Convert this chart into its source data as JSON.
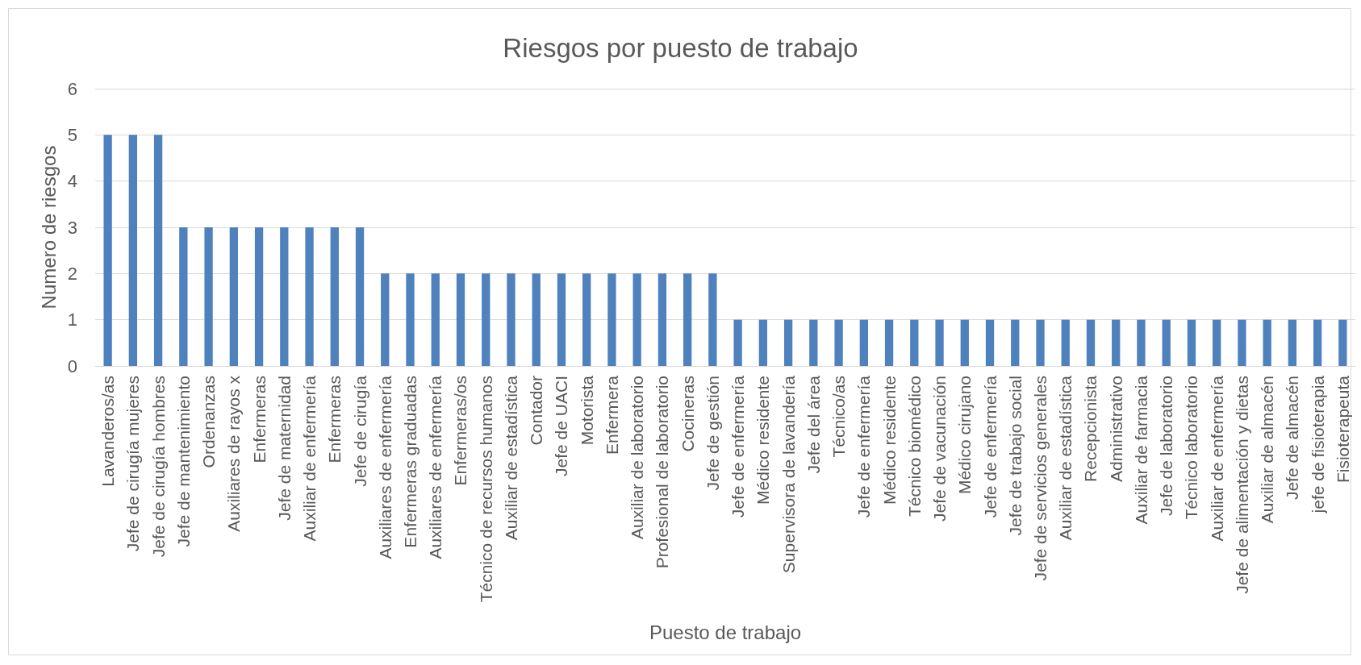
{
  "chart_data": {
    "type": "bar",
    "title": "Riesgos por puesto de trabajo",
    "xlabel": "Puesto de trabajo",
    "ylabel": "Numero de riesgos",
    "categories": [
      "Lavanderos/as",
      "Jefe de cirugía mujeres",
      "Jefe de cirugía hombres",
      "Jefe de mantenimiento",
      "Ordenanzas",
      "Auxiliares de rayos x",
      "Enfermeras",
      "Jefe de maternidad",
      "Auxiliar de enfermería",
      "Enfermeras",
      "Jefe de cirugía",
      "Auxiliares de enfermería",
      "Enfermeras graduadas",
      "Auxiliares de enfermería",
      "Enfermeras/os",
      "Técnico de recursos humanos",
      "Auxiliar de estadística",
      "Contador",
      "Jefe de UACI",
      "Motorista",
      "Enfermera",
      "Auxiliar de laboratorio",
      "Profesional de laboratorio",
      "Cocineras",
      "Jefe de gestión",
      "Jefe de enfermería",
      "Médico residente",
      "Supervisora de lavandería",
      "Jefe del área",
      "Técnico/as",
      "Jefe de enfermería",
      "Médico residente",
      "Técnico biomédico",
      "Jefe de vacunación",
      "Médico cirujano",
      "Jefe de enfermería",
      "Jefe de trabajo social",
      "Jefe de servicios generales",
      "Auxiliar de estadística",
      "Recepcionista",
      "Administrativo",
      "Auxiliar de farmacia",
      "Jefe de laboratorio",
      "Técnico laboratorio",
      "Auxiliar de enfermería",
      "Jefe de alimentación y dietas",
      "Auxiliar de almacén",
      "Jefe de almacén",
      "jefe de fisioterapia",
      "Fisioterapeuta"
    ],
    "values": [
      5,
      5,
      5,
      3,
      3,
      3,
      3,
      3,
      3,
      3,
      3,
      2,
      2,
      2,
      2,
      2,
      2,
      2,
      2,
      2,
      2,
      2,
      2,
      2,
      2,
      1,
      1,
      1,
      1,
      1,
      1,
      1,
      1,
      1,
      1,
      1,
      1,
      1,
      1,
      1,
      1,
      1,
      1,
      1,
      1,
      1,
      1,
      1,
      1,
      1
    ],
    "color": "#4f81bd",
    "ylim": [
      0,
      6
    ],
    "yticks": [
      0,
      1,
      2,
      3,
      4,
      5,
      6
    ],
    "grid": "y"
  }
}
